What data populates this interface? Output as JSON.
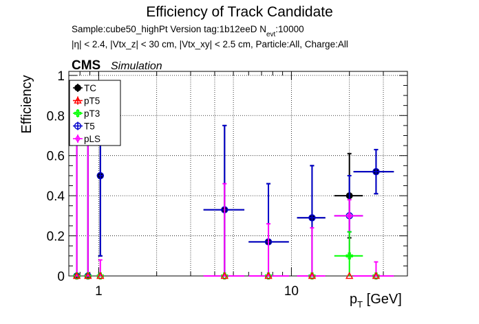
{
  "colors": {
    "TC": "#000000",
    "pT5": "#ff0000",
    "pT3": "#00ff00",
    "T5": "#0000cc",
    "pLS": "#ff00ff",
    "grid": "#000000",
    "background": "#ffffff"
  },
  "header": {
    "cms_label": "CMS",
    "simulation_label": "Simulation",
    "sample_line": "Sample:cube50_highPt   Version tag:1b12eeD  N",
    "sample_sub": "evt",
    "sample_tail": ":10000",
    "cuts_line": "|η| < 2.4, |Vtx_z| < 30 cm, |Vtx_xy| < 2.5 cm, Particle:All, Charge:All"
  },
  "chart_data": {
    "type": "scatter",
    "title": "Efficiency of Track Candidate",
    "xlabel": "p_T [GeV]",
    "ylabel": "Efficiency",
    "xscale": "log",
    "xlim": [
      0.7,
      40
    ],
    "ylim": [
      0,
      1.02
    ],
    "x_tick_labels": [
      "1",
      "10"
    ],
    "y_tick_labels": [
      "0",
      "0.2",
      "0.4",
      "0.6",
      "0.8",
      "1"
    ],
    "grid": true,
    "legend_position": "top-left",
    "legend": [
      "TC",
      "pT5",
      "pT3",
      "T5",
      "pLS"
    ],
    "series": [
      {
        "name": "TC",
        "marker": "filled-circle",
        "points": [
          {
            "x": 0.77,
            "xlo": 0.75,
            "xhi": 0.8,
            "y": 0,
            "ylo": 0,
            "yhi": 0.85
          },
          {
            "x": 0.88,
            "xlo": 0.86,
            "xhi": 0.9,
            "y": 0,
            "ylo": 0,
            "yhi": 0.85
          },
          {
            "x": 1.02,
            "xlo": 1.0,
            "xhi": 1.05,
            "y": 0.5,
            "ylo": 0.1,
            "yhi": 0.9
          },
          {
            "x": 4.5,
            "xlo": 3.5,
            "xhi": 5.7,
            "y": 0.33,
            "ylo": 0.0,
            "yhi": 0.75
          },
          {
            "x": 7.6,
            "xlo": 6.0,
            "xhi": 9.7,
            "y": 0.17,
            "ylo": 0.0,
            "yhi": 0.46
          },
          {
            "x": 12.8,
            "xlo": 10.7,
            "xhi": 15.0,
            "y": 0.29,
            "ylo": 0.0,
            "yhi": 0.55
          },
          {
            "x": 20.0,
            "xlo": 16.7,
            "xhi": 23.5,
            "y": 0.4,
            "ylo": 0.19,
            "yhi": 0.61
          },
          {
            "x": 27.5,
            "xlo": 21.0,
            "xhi": 34.0,
            "y": 0.52,
            "ylo": 0.41,
            "yhi": 0.63
          }
        ]
      },
      {
        "name": "pT5",
        "marker": "open-triangle",
        "points": [
          {
            "x": 0.77,
            "y": 0
          },
          {
            "x": 0.88,
            "y": 0
          },
          {
            "x": 1.02,
            "y": 0
          },
          {
            "x": 4.5,
            "y": 0
          },
          {
            "x": 7.6,
            "y": 0
          },
          {
            "x": 12.8,
            "y": 0
          },
          {
            "x": 20.0,
            "y": 0
          },
          {
            "x": 27.5,
            "y": 0
          }
        ]
      },
      {
        "name": "pT3",
        "marker": "open-cross",
        "points": [
          {
            "x": 0.77,
            "y": 0
          },
          {
            "x": 0.88,
            "y": 0
          },
          {
            "x": 1.02,
            "y": 0
          },
          {
            "x": 4.5,
            "y": 0
          },
          {
            "x": 7.6,
            "y": 0
          },
          {
            "x": 12.8,
            "y": 0
          },
          {
            "x": 20.0,
            "xlo": 16.7,
            "xhi": 23.5,
            "y": 0.1,
            "ylo": 0.0,
            "yhi": 0.22
          },
          {
            "x": 27.5,
            "y": 0
          }
        ]
      },
      {
        "name": "T5",
        "marker": "open-circle",
        "points": [
          {
            "x": 0.77,
            "xlo": 0.75,
            "xhi": 0.8,
            "y": 0,
            "ylo": 0,
            "yhi": 0.85
          },
          {
            "x": 0.88,
            "xlo": 0.86,
            "xhi": 0.9,
            "y": 0,
            "ylo": 0,
            "yhi": 0.85
          },
          {
            "x": 1.02,
            "xlo": 1.0,
            "xhi": 1.05,
            "y": 0.5,
            "ylo": 0.1,
            "yhi": 0.9
          },
          {
            "x": 4.5,
            "xlo": 3.5,
            "xhi": 5.7,
            "y": 0.33,
            "ylo": 0.0,
            "yhi": 0.75
          },
          {
            "x": 7.6,
            "xlo": 6.0,
            "xhi": 9.7,
            "y": 0.17,
            "ylo": 0.0,
            "yhi": 0.46
          },
          {
            "x": 12.8,
            "xlo": 10.7,
            "xhi": 15.0,
            "y": 0.29,
            "ylo": 0.0,
            "yhi": 0.55
          },
          {
            "x": 20.0,
            "xlo": 16.7,
            "xhi": 23.5,
            "y": 0.3,
            "ylo": 0.22,
            "yhi": 0.5
          },
          {
            "x": 27.5,
            "xlo": 21.0,
            "xhi": 34.0,
            "y": 0.52,
            "ylo": 0.41,
            "yhi": 0.63
          }
        ]
      },
      {
        "name": "pLS",
        "marker": "open-diamond",
        "points": [
          {
            "x": 0.77,
            "xlo": 0.75,
            "xhi": 0.8,
            "y": 0,
            "ylo": 0,
            "yhi": 0.85
          },
          {
            "x": 0.88,
            "xlo": 0.86,
            "xhi": 0.9,
            "y": 0,
            "ylo": 0,
            "yhi": 0.85
          },
          {
            "x": 1.02,
            "y": 0,
            "ylo": 0,
            "yhi": 0.08
          },
          {
            "x": 4.5,
            "xlo": 3.5,
            "xhi": 5.7,
            "y": 0,
            "ylo": 0,
            "yhi": 0.46
          },
          {
            "x": 7.6,
            "xlo": 6.0,
            "xhi": 9.7,
            "y": 0,
            "ylo": 0,
            "yhi": 0.26
          },
          {
            "x": 12.8,
            "xlo": 10.7,
            "xhi": 15.0,
            "y": 0,
            "ylo": 0,
            "yhi": 0.24
          },
          {
            "x": 20.0,
            "xlo": 16.7,
            "xhi": 23.5,
            "y": 0.3,
            "ylo": 0.1,
            "yhi": 0.38
          },
          {
            "x": 27.5,
            "xlo": 21.0,
            "xhi": 34.0,
            "y": 0,
            "ylo": 0,
            "yhi": 0.07
          }
        ]
      }
    ]
  }
}
